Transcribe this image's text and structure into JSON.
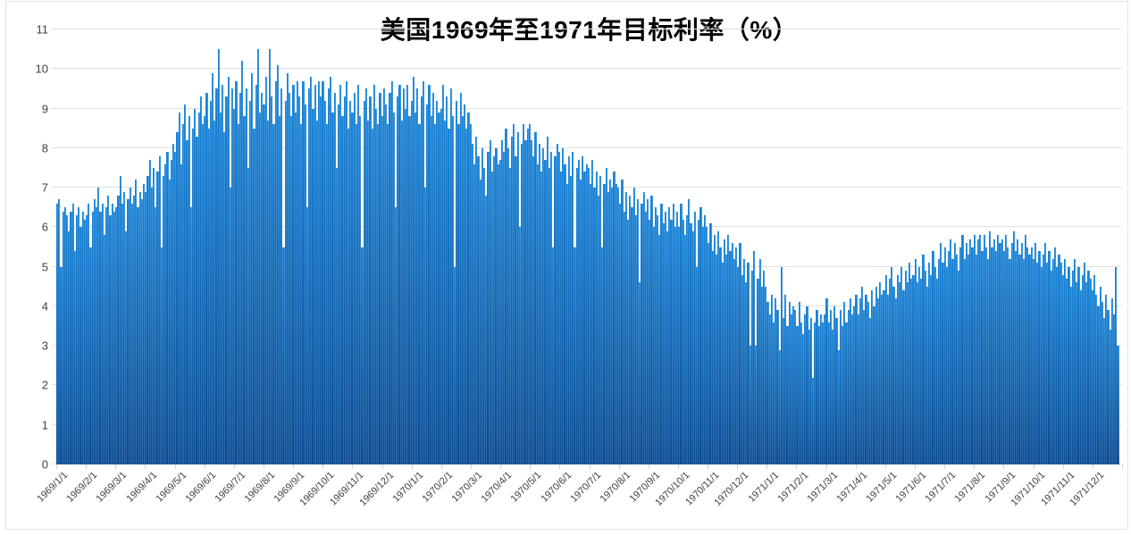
{
  "colors": {
    "bar_gradient_top": "#1a85d9",
    "bar_gradient_bottom": "#094b92",
    "gridline": "#e0e0e0",
    "axis_text": "#404040",
    "tick_mark": "#cfcfcf",
    "frame_border": "#e3e3e3",
    "title_text": "#000000"
  },
  "chart_data": {
    "type": "bar",
    "title": "美国1969年至1971年目标利率（%）",
    "xlabel": "",
    "ylabel": "",
    "ylim": [
      0,
      11
    ],
    "yticks": [
      0,
      1,
      2,
      3,
      4,
      5,
      6,
      7,
      8,
      9,
      10,
      11
    ],
    "grid": "horizontal",
    "legend": "none",
    "x_tick_labels": [
      "1969/1/1",
      "1969/2/1",
      "1969/3/1",
      "1969/4/1",
      "1969/5/1",
      "1969/6/1",
      "1969/7/1",
      "1969/8/1",
      "1969/9/1",
      "1969/10/1",
      "1969/11/1",
      "1969/12/1",
      "1970/1/1",
      "1970/2/1",
      "1970/3/1",
      "1970/4/1",
      "1970/5/1",
      "1970/6/1",
      "1970/7/1",
      "1970/8/1",
      "1970/9/1",
      "1970/10/1",
      "1970/11/1",
      "1970/12/1",
      "1971/1/1",
      "1971/2/1",
      "1971/3/1",
      "1971/4/1",
      "1971/5/1",
      "1971/6/1",
      "1971/7/1",
      "1971/8/1",
      "1971/9/1",
      "1971/10/1",
      "1971/11/1",
      "1971/12/1"
    ],
    "samples_per_month": 15,
    "sampled_values_by_month": [
      [
        6.6,
        6.7,
        5.0,
        6.4,
        6.5,
        6.3,
        5.9,
        6.4,
        6.6,
        5.4,
        6.3,
        6.5,
        6.0,
        6.4,
        6.2
      ],
      [
        6.3,
        6.6,
        5.5,
        6.4,
        6.7,
        6.5,
        7.0,
        6.4,
        6.6,
        5.8,
        6.5,
        6.8,
        6.3,
        6.6,
        6.4
      ],
      [
        6.5,
        6.8,
        7.3,
        6.6,
        6.9,
        5.9,
        6.7,
        7.0,
        6.6,
        6.8,
        7.2,
        6.5,
        6.9,
        6.7,
        7.1
      ],
      [
        6.9,
        7.3,
        7.7,
        7.0,
        7.5,
        6.5,
        7.4,
        7.8,
        5.5,
        7.3,
        7.6,
        7.9,
        7.2,
        7.7,
        8.1
      ],
      [
        7.9,
        8.4,
        8.9,
        7.6,
        8.6,
        9.1,
        8.2,
        8.8,
        6.5,
        8.5,
        9.0,
        8.3,
        8.9,
        9.3,
        8.6
      ],
      [
        8.8,
        9.4,
        8.5,
        9.2,
        9.9,
        8.7,
        9.5,
        10.5,
        8.9,
        9.6,
        8.4,
        9.3,
        9.8,
        7.0,
        9.5
      ],
      [
        9.0,
        9.7,
        8.6,
        9.4,
        10.2,
        8.8,
        9.5,
        7.5,
        9.2,
        9.9,
        8.5,
        9.6,
        10.5,
        8.9,
        9.4
      ],
      [
        9.1,
        9.8,
        8.7,
        10.5,
        9.3,
        8.6,
        9.7,
        10.1,
        8.8,
        9.5,
        5.5,
        9.2,
        9.9,
        9.4,
        8.8
      ],
      [
        9.6,
        8.9,
        9.7,
        9.3,
        8.6,
        9.7,
        9.1,
        6.5,
        9.5,
        9.8,
        9.0,
        9.6,
        8.7,
        9.7,
        9.3
      ],
      [
        9.7,
        9.2,
        8.6,
        9.5,
        9.8,
        8.9,
        9.4,
        7.5,
        9.1,
        9.6,
        8.8,
        9.3,
        9.7,
        8.5,
        9.2
      ],
      [
        8.9,
        9.4,
        8.6,
        9.6,
        8.8,
        5.5,
        9.2,
        9.5,
        8.7,
        9.3,
        8.5,
        9.6,
        9.0,
        8.6,
        9.4
      ],
      [
        8.8,
        9.5,
        9.1,
        8.6,
        9.4,
        9.7,
        8.9,
        6.5,
        9.3,
        9.6,
        8.7,
        9.5,
        9.0,
        9.6,
        8.8
      ],
      [
        9.2,
        9.8,
        8.9,
        9.5,
        8.6,
        9.3,
        9.7,
        7.0,
        9.1,
        9.6,
        8.8,
        9.4,
        8.6,
        9.2,
        8.9
      ],
      [
        9.0,
        9.6,
        8.7,
        9.3,
        8.5,
        9.5,
        8.8,
        5.0,
        9.2,
        8.6,
        9.4,
        8.8,
        9.1,
        8.5,
        8.9
      ],
      [
        8.6,
        8.1,
        7.6,
        8.3,
        7.8,
        7.2,
        8.0,
        7.5,
        6.8,
        7.9,
        8.2,
        7.4,
        7.8,
        8.0,
        7.6
      ],
      [
        7.7,
        8.2,
        7.9,
        8.5,
        8.0,
        7.5,
        8.3,
        8.6,
        7.8,
        8.4,
        6.0,
        8.1,
        8.6,
        8.2,
        8.5
      ],
      [
        8.6,
        8.2,
        7.8,
        8.4,
        7.6,
        8.1,
        7.4,
        8.0,
        7.7,
        8.3,
        7.5,
        7.9,
        5.5,
        7.8,
        8.1
      ],
      [
        7.9,
        7.4,
        8.0,
        7.6,
        7.1,
        7.8,
        7.3,
        7.9,
        5.5,
        7.5,
        7.7,
        7.2,
        7.8,
        7.4,
        7.6
      ],
      [
        7.5,
        7.1,
        7.7,
        7.0,
        7.4,
        6.8,
        7.3,
        5.5,
        7.1,
        7.5,
        6.9,
        7.2,
        7.0,
        7.4,
        7.1
      ],
      [
        7.0,
        6.6,
        7.2,
        6.4,
        6.9,
        6.2,
        6.8,
        6.5,
        7.0,
        6.3,
        6.7,
        4.6,
        6.6,
        6.9,
        6.4
      ],
      [
        6.7,
        6.2,
        6.8,
        6.0,
        6.5,
        6.3,
        5.8,
        6.6,
        6.1,
        6.4,
        5.9,
        6.5,
        6.2,
        6.6,
        6.0
      ],
      [
        6.4,
        6.0,
        6.6,
        6.2,
        5.8,
        6.3,
        6.7,
        6.1,
        5.9,
        6.4,
        5.0,
        6.2,
        6.5,
        6.0,
        6.3
      ],
      [
        6.0,
        5.6,
        6.1,
        5.4,
        5.8,
        5.3,
        5.9,
        5.5,
        5.1,
        5.7,
        5.3,
        5.8,
        5.4,
        5.6,
        5.2
      ],
      [
        5.5,
        5.0,
        5.6,
        4.8,
        5.2,
        4.6,
        5.1,
        3.0,
        4.9,
        5.4,
        3.0,
        4.7,
        5.2,
        4.5,
        4.9
      ],
      [
        4.5,
        4.1,
        3.8,
        4.3,
        3.6,
        4.2,
        3.9,
        2.9,
        5.0,
        3.7,
        4.3,
        3.5,
        4.1,
        3.8,
        4.0
      ],
      [
        3.9,
        3.5,
        4.1,
        3.6,
        3.3,
        3.8,
        4.0,
        3.4,
        3.7,
        2.2,
        3.6,
        3.9,
        3.5,
        3.8,
        3.6
      ],
      [
        3.8,
        4.2,
        3.6,
        3.9,
        3.4,
        4.0,
        3.7,
        2.9,
        3.9,
        3.5,
        4.1,
        3.6,
        3.9,
        4.2,
        3.8
      ],
      [
        4.0,
        4.3,
        3.8,
        4.2,
        4.5,
        3.9,
        4.3,
        4.1,
        3.7,
        4.4,
        4.0,
        4.5,
        4.2,
        4.6,
        4.3
      ],
      [
        4.4,
        4.8,
        4.3,
        4.7,
        5.0,
        4.5,
        4.2,
        4.8,
        4.6,
        5.0,
        4.4,
        4.9,
        4.6,
        5.1,
        4.7
      ],
      [
        4.8,
        5.2,
        4.6,
        5.0,
        4.7,
        5.3,
        4.9,
        4.5,
        5.1,
        4.8,
        5.4,
        5.0,
        4.7,
        5.2,
        5.6
      ],
      [
        5.1,
        5.5,
        5.0,
        5.4,
        5.7,
        5.2,
        5.6,
        5.3,
        4.9,
        5.5,
        5.8,
        5.2,
        5.6,
        5.3,
        5.7
      ],
      [
        5.5,
        5.8,
        5.3,
        5.7,
        5.8,
        5.4,
        5.8,
        5.5,
        5.2,
        5.9,
        5.5,
        5.7,
        5.4,
        5.8,
        5.6
      ],
      [
        5.7,
        5.4,
        5.8,
        5.5,
        5.2,
        5.6,
        5.9,
        5.4,
        5.7,
        5.3,
        5.6,
        5.2,
        5.8,
        5.5,
        5.3
      ],
      [
        5.5,
        5.2,
        5.6,
        5.1,
        5.4,
        5.0,
        5.3,
        5.6,
        5.1,
        5.4,
        4.9,
        5.2,
        5.5,
        5.0,
        5.3
      ],
      [
        5.1,
        4.8,
        5.2,
        4.7,
        5.0,
        4.5,
        4.9,
        5.2,
        4.6,
        5.0,
        4.4,
        4.8,
        5.1,
        4.6,
        4.9
      ],
      [
        4.7,
        4.4,
        4.8,
        4.3,
        4.0,
        4.5,
        4.1,
        3.7,
        4.3,
        3.9,
        3.4,
        4.2,
        3.8,
        5.0,
        3.0
      ]
    ]
  }
}
